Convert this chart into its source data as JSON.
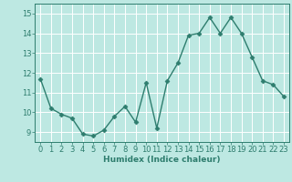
{
  "x": [
    0,
    1,
    2,
    3,
    4,
    5,
    6,
    7,
    8,
    9,
    10,
    11,
    12,
    13,
    14,
    15,
    16,
    17,
    18,
    19,
    20,
    21,
    22,
    23
  ],
  "y": [
    11.7,
    10.2,
    9.9,
    9.7,
    8.9,
    8.8,
    9.1,
    9.8,
    10.3,
    9.5,
    11.5,
    9.2,
    11.6,
    12.5,
    13.9,
    14.0,
    14.8,
    14.0,
    14.8,
    14.0,
    12.8,
    11.6,
    11.4,
    10.8
  ],
  "line_color": "#2e7d6e",
  "marker": "D",
  "markersize": 2.5,
  "linewidth": 1.0,
  "background_color": "#bde8e2",
  "grid_color": "#ffffff",
  "xlabel": "Humidex (Indice chaleur)",
  "xlim": [
    -0.5,
    23.5
  ],
  "ylim": [
    8.5,
    15.5
  ],
  "yticks": [
    9,
    10,
    11,
    12,
    13,
    14,
    15
  ],
  "xticks": [
    0,
    1,
    2,
    3,
    4,
    5,
    6,
    7,
    8,
    9,
    10,
    11,
    12,
    13,
    14,
    15,
    16,
    17,
    18,
    19,
    20,
    21,
    22,
    23
  ],
  "xlabel_fontsize": 6.5,
  "tick_fontsize": 6.0
}
